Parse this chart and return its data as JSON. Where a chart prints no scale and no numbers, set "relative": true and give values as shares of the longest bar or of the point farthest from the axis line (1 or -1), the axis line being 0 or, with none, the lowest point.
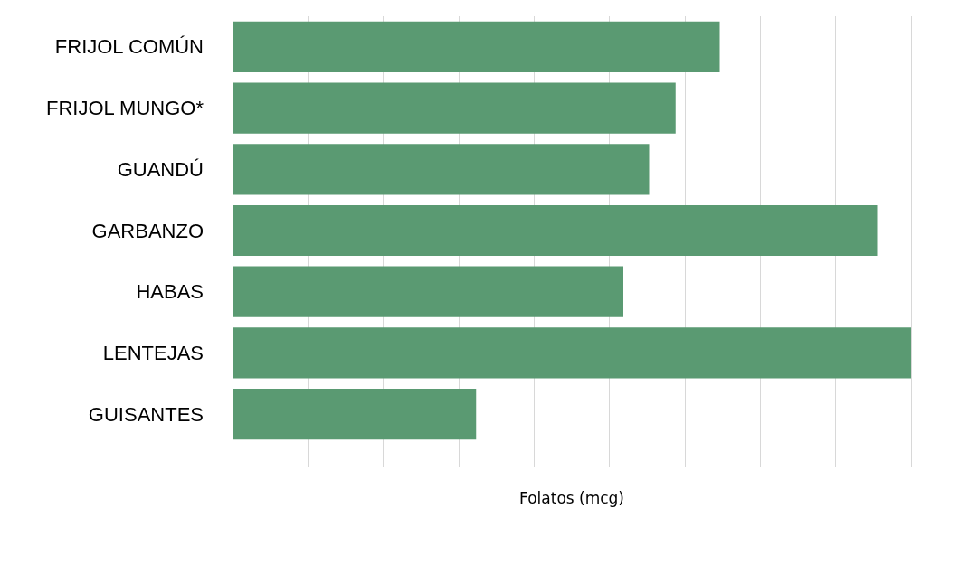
{
  "chart_data": {
    "type": "bar",
    "orientation": "horizontal",
    "relative": true,
    "xlabel": "Folatos (mcg)",
    "categories": [
      "FRIJOL COMÚN",
      "FRIJOL MUNGO*",
      "GUANDÚ",
      "GARBANZO",
      "HABAS",
      "LENTEJAS",
      "GUISANTES"
    ],
    "values": [
      0.718,
      0.653,
      0.614,
      0.95,
      0.576,
      1,
      0.359
    ],
    "color": "#5a9a72",
    "grid": "x"
  }
}
